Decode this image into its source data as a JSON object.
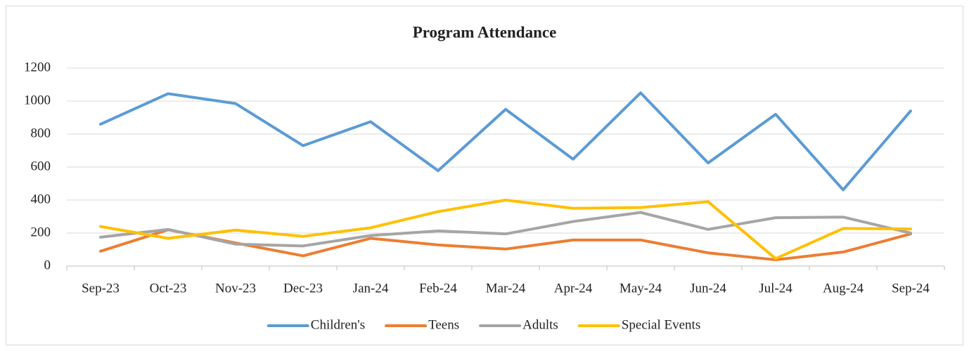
{
  "chart_data": {
    "type": "line",
    "title": "Program Attendance",
    "categories": [
      "Sep-23",
      "Oct-23",
      "Nov-23",
      "Dec-23",
      "Jan-24",
      "Feb-24",
      "Mar-24",
      "Apr-24",
      "May-24",
      "Jun-24",
      "Jul-24",
      "Aug-24",
      "Sep-24"
    ],
    "series": [
      {
        "name": "Children's",
        "color": "#5b9bd5",
        "values": [
          860,
          1045,
          985,
          730,
          875,
          578,
          950,
          648,
          1050,
          625,
          920,
          462,
          940
        ]
      },
      {
        "name": "Teens",
        "color": "#ed7d31",
        "values": [
          90,
          220,
          140,
          62,
          168,
          128,
          103,
          158,
          158,
          80,
          38,
          85,
          195
        ]
      },
      {
        "name": "Adults",
        "color": "#a5a5a5",
        "values": [
          175,
          222,
          133,
          122,
          185,
          213,
          195,
          270,
          325,
          222,
          293,
          297,
          200
        ]
      },
      {
        "name": "Special Events",
        "color": "#ffc000",
        "values": [
          240,
          168,
          218,
          180,
          232,
          330,
          400,
          350,
          355,
          390,
          45,
          228,
          225
        ]
      }
    ],
    "ylim": [
      0,
      1200
    ],
    "yticks": [
      0,
      200,
      400,
      600,
      800,
      1000,
      1200
    ],
    "grid": true,
    "legend": "bottom"
  }
}
